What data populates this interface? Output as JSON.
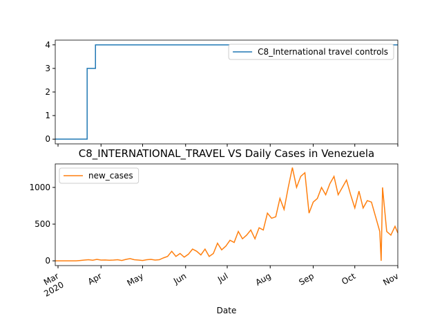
{
  "chart_data": [
    {
      "type": "line",
      "drawstyle": "steps-post",
      "x": [
        -2,
        21,
        27,
        245
      ],
      "series": [
        {
          "name": "C8_International travel controls",
          "color": "#1f77b4",
          "values": [
            0,
            3,
            4,
            4
          ]
        }
      ],
      "xlim": [
        -2,
        245
      ],
      "xticks": [
        0,
        31,
        61,
        92,
        122,
        153,
        184,
        214,
        245
      ],
      "ylim": [
        -0.2,
        4.2
      ],
      "yticks": [
        0,
        1,
        2,
        3,
        4
      ],
      "legend": "upper-right"
    },
    {
      "type": "line",
      "title": "C8_INTERNATIONAL_TRAVEL VS Daily Cases in Venezuela",
      "xlabel": "Date",
      "x": [
        -2,
        1,
        4,
        7,
        10,
        13,
        16,
        19,
        22,
        25,
        28,
        31,
        34,
        37,
        40,
        43,
        46,
        49,
        52,
        55,
        58,
        61,
        64,
        67,
        70,
        73,
        76,
        79,
        82,
        85,
        88,
        91,
        94,
        97,
        100,
        103,
        106,
        109,
        112,
        115,
        118,
        121,
        124,
        127,
        130,
        133,
        136,
        139,
        142,
        145,
        148,
        151,
        154,
        157,
        160,
        163,
        166,
        169,
        172,
        175,
        178,
        181,
        184,
        187,
        190,
        193,
        196,
        199,
        202,
        205,
        208,
        211,
        214,
        217,
        220,
        223,
        226,
        229,
        232,
        233,
        234,
        237,
        240,
        243,
        245
      ],
      "series": [
        {
          "name": "new_cases",
          "color": "#ff7f0e",
          "values": [
            0,
            0,
            0,
            0,
            0,
            0,
            5,
            10,
            15,
            8,
            20,
            10,
            12,
            8,
            10,
            15,
            5,
            20,
            30,
            15,
            10,
            5,
            15,
            20,
            10,
            15,
            40,
            60,
            130,
            60,
            100,
            50,
            90,
            160,
            130,
            80,
            160,
            60,
            100,
            240,
            150,
            200,
            280,
            250,
            400,
            300,
            350,
            420,
            300,
            450,
            420,
            650,
            580,
            600,
            850,
            700,
            1000,
            1270,
            1000,
            1150,
            1200,
            650,
            800,
            850,
            1000,
            900,
            1050,
            1150,
            900,
            1000,
            1100,
            900,
            720,
            950,
            720,
            820,
            800,
            600,
            400,
            0,
            1000,
            400,
            350,
            470,
            380
          ]
        }
      ],
      "xlim": [
        -2,
        245
      ],
      "xticks": [
        {
          "value": 0,
          "label": "Mar\n2020"
        },
        {
          "value": 31,
          "label": "Apr"
        },
        {
          "value": 61,
          "label": "May"
        },
        {
          "value": 92,
          "label": "Jun"
        },
        {
          "value": 122,
          "label": "Jul"
        },
        {
          "value": 153,
          "label": "Aug"
        },
        {
          "value": 184,
          "label": "Sep"
        },
        {
          "value": 214,
          "label": "Oct"
        },
        {
          "value": 245,
          "label": "Nov"
        }
      ],
      "ylim": [
        -65,
        1320
      ],
      "yticks": [
        0,
        500,
        1000
      ],
      "legend": "upper-left"
    }
  ]
}
